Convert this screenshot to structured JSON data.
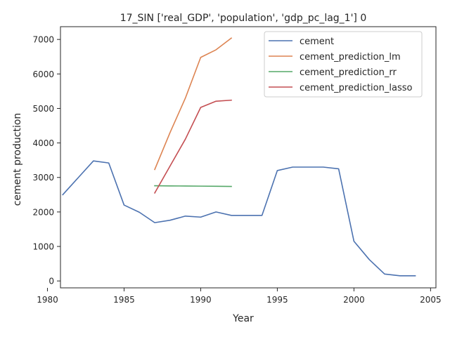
{
  "chart_data": {
    "type": "line",
    "title": "17_SIN ['real_GDP', 'population', 'gdp_pc_lag_1'] 0",
    "xlabel": "Year",
    "ylabel": "cement production",
    "xlim": [
      1980.85,
      2005.35
    ],
    "ylim": [
      -200,
      7370
    ],
    "xticks": [
      1980,
      1985,
      1990,
      1995,
      2000,
      2005
    ],
    "yticks": [
      0,
      1000,
      2000,
      3000,
      4000,
      5000,
      6000,
      7000
    ],
    "grid": false,
    "legend_position": "top-right",
    "series": [
      {
        "name": "cement",
        "color": "#4c72b0",
        "x": [
          1981,
          1982,
          1983,
          1984,
          1985,
          1986,
          1987,
          1988,
          1989,
          1990,
          1991,
          1992,
          1993,
          1994,
          1995,
          1996,
          1997,
          1998,
          1999,
          2000,
          2001,
          2002,
          2003,
          2004
        ],
        "y": [
          2500,
          2990,
          3480,
          3420,
          2200,
          1990,
          1690,
          1760,
          1880,
          1850,
          2000,
          1900,
          1900,
          1900,
          3200,
          3300,
          3300,
          3300,
          3250,
          1150,
          620,
          200,
          150,
          150
        ]
      },
      {
        "name": "cement_prediction_lm",
        "color": "#dd8452",
        "x": [
          1987,
          1988,
          1989,
          1990,
          1991,
          1992
        ],
        "y": [
          3230,
          4300,
          5300,
          6480,
          6700,
          7040
        ]
      },
      {
        "name": "cement_prediction_rr",
        "color": "#55a868",
        "x": [
          1987,
          1988,
          1989,
          1990,
          1991,
          1992
        ],
        "y": [
          2760,
          2755,
          2752,
          2748,
          2744,
          2740
        ]
      },
      {
        "name": "cement_prediction_lasso",
        "color": "#c44e52",
        "x": [
          1987,
          1988,
          1989,
          1990,
          1991,
          1992
        ],
        "y": [
          2550,
          3330,
          4110,
          5030,
          5210,
          5240
        ]
      }
    ]
  }
}
